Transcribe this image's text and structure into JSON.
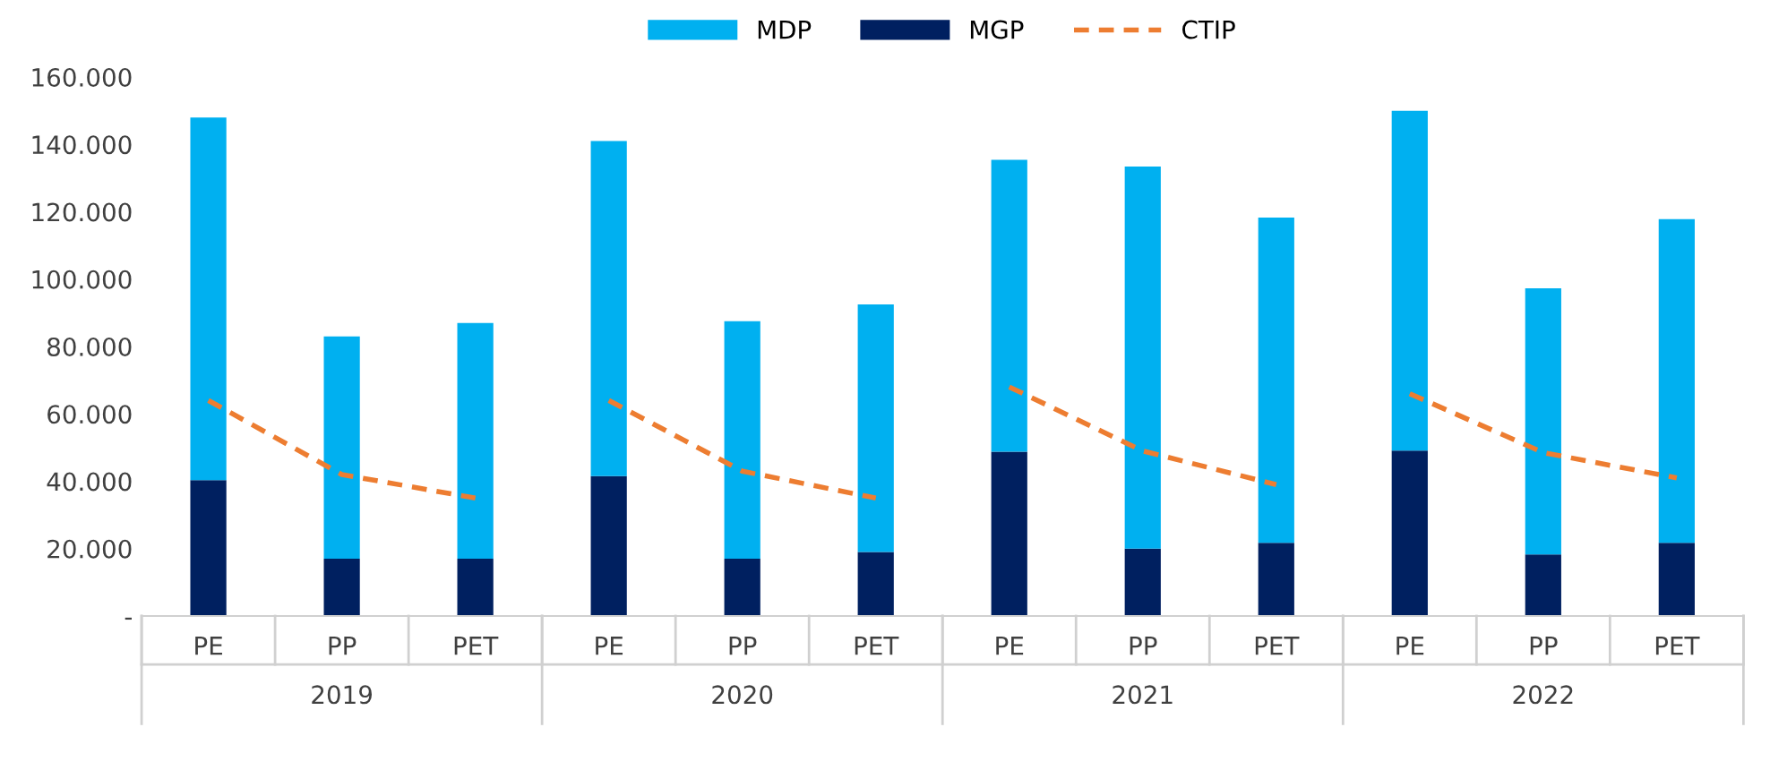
{
  "chart_data": {
    "type": "bar",
    "stacked": true,
    "categories": [
      "PE",
      "PP",
      "PET",
      "PE",
      "PP",
      "PET",
      "PE",
      "PP",
      "PET",
      "PE",
      "PP",
      "PET"
    ],
    "annotations": [
      "2019",
      "2020",
      "2021",
      "2022"
    ],
    "series": [
      {
        "name": "MGP",
        "color": "#002060",
        "values": [
          40300,
          17000,
          17000,
          41500,
          17000,
          19000,
          48800,
          20000,
          21700,
          49100,
          18300,
          21700
        ]
      },
      {
        "name": "MDP",
        "color": "#00b0f0",
        "values": [
          107700,
          66000,
          70000,
          99500,
          70500,
          73500,
          86600,
          113400,
          96600,
          100900,
          79000,
          96100
        ]
      },
      {
        "name": "CTIP",
        "type": "line",
        "color": "#ed7d31",
        "line_style": "dashed",
        "values": [
          64000,
          42000,
          35000,
          64000,
          43000,
          35000,
          68000,
          49000,
          39000,
          66000,
          48500,
          41000
        ]
      }
    ],
    "ylim": [
      0,
      160000
    ],
    "yticks": [
      {
        "value": 0,
        "label": "-"
      },
      {
        "value": 20000,
        "label": "20.000"
      },
      {
        "value": 40000,
        "label": "40.000"
      },
      {
        "value": 60000,
        "label": "60.000"
      },
      {
        "value": 80000,
        "label": "80.000"
      },
      {
        "value": 100000,
        "label": "100.000"
      },
      {
        "value": 120000,
        "label": "120.000"
      },
      {
        "value": 140000,
        "label": "140.000"
      },
      {
        "value": 160000,
        "label": "160.000"
      }
    ],
    "grid": false,
    "legend": "top"
  }
}
